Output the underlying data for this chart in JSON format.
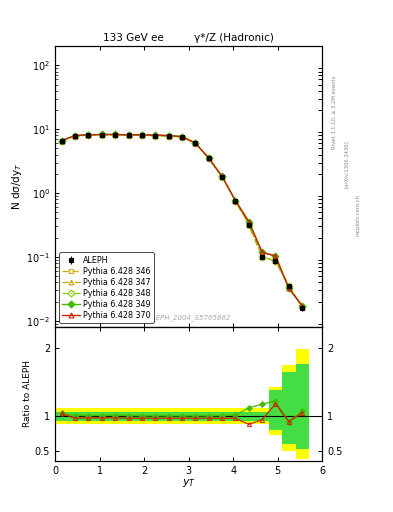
{
  "title_left": "133 GeV ee",
  "title_right": "γ*/Z (Hadronic)",
  "xlabel": "$y_T$",
  "ylabel_main": "N dσ/dy$_T$",
  "ylabel_ratio": "Ratio to ALEPH",
  "watermark": "ALEPH_2004_S5765862",
  "rivet_text": "Rivet 3.1.10, ≥ 3.2M events",
  "arxiv_text": "[arXiv:1306.3436]",
  "mcplots_text": "mcplots.cern.ch",
  "aleph_x": [
    0.15,
    0.45,
    0.75,
    1.05,
    1.35,
    1.65,
    1.95,
    2.25,
    2.55,
    2.85,
    3.15,
    3.45,
    3.75,
    4.05,
    4.35,
    4.65,
    4.95,
    5.25,
    5.55
  ],
  "aleph_y": [
    6.5,
    7.8,
    8.0,
    8.1,
    8.1,
    8.0,
    8.0,
    7.9,
    7.8,
    7.5,
    6.0,
    3.5,
    1.8,
    0.75,
    0.32,
    0.1,
    0.085,
    0.035,
    0.016
  ],
  "aleph_yerr": [
    0.25,
    0.25,
    0.25,
    0.25,
    0.25,
    0.25,
    0.25,
    0.25,
    0.25,
    0.25,
    0.2,
    0.15,
    0.08,
    0.04,
    0.02,
    0.008,
    0.007,
    0.003,
    0.002
  ],
  "mc346_y": [
    6.45,
    7.85,
    8.05,
    8.15,
    8.15,
    8.05,
    8.05,
    7.95,
    7.85,
    7.55,
    6.05,
    3.52,
    1.81,
    0.755,
    0.322,
    0.101,
    0.086,
    0.0355,
    0.0162
  ],
  "mc347_y": [
    6.45,
    7.85,
    8.05,
    8.15,
    8.15,
    8.05,
    8.05,
    7.95,
    7.85,
    7.55,
    6.05,
    3.52,
    1.81,
    0.755,
    0.322,
    0.101,
    0.086,
    0.0355,
    0.0162
  ],
  "mc348_y": [
    6.45,
    7.85,
    8.05,
    8.15,
    8.15,
    8.05,
    8.05,
    7.95,
    7.85,
    7.55,
    6.05,
    3.52,
    1.81,
    0.755,
    0.322,
    0.101,
    0.086,
    0.0355,
    0.0162
  ],
  "mc349_y": [
    6.63,
    7.96,
    8.16,
    8.26,
    8.26,
    8.16,
    8.16,
    8.06,
    7.96,
    7.66,
    6.06,
    3.535,
    1.818,
    0.765,
    0.3584,
    0.118,
    0.1037,
    0.0322,
    0.01728
  ],
  "mc370_y": [
    6.63,
    7.96,
    8.16,
    8.26,
    8.26,
    8.16,
    8.16,
    8.06,
    7.96,
    7.66,
    6.06,
    3.535,
    1.818,
    0.765,
    0.3584,
    0.118,
    0.1037,
    0.0322,
    0.01728
  ],
  "ratio_mc_x": [
    0.15,
    0.45,
    0.75,
    1.05,
    1.35,
    1.65,
    1.95,
    2.25,
    2.55,
    2.85,
    3.15,
    3.45,
    3.75,
    4.05,
    4.35,
    4.65,
    4.95,
    5.25,
    5.55
  ],
  "ratio_370": [
    1.04,
    0.97,
    0.975,
    0.975,
    0.975,
    0.97,
    0.97,
    0.97,
    0.97,
    0.97,
    0.97,
    0.97,
    0.97,
    0.97,
    0.88,
    0.95,
    1.18,
    0.92,
    1.05
  ],
  "ratio_349": [
    1.04,
    1.01,
    1.01,
    1.01,
    1.01,
    1.01,
    1.005,
    1.005,
    1.005,
    1.005,
    1.005,
    1.005,
    1.01,
    1.02,
    1.12,
    1.18,
    1.22,
    0.92,
    1.08
  ],
  "band_x_edges": [
    0.0,
    0.3,
    0.6,
    0.9,
    1.2,
    1.5,
    1.8,
    2.1,
    2.4,
    2.7,
    3.0,
    3.3,
    3.6,
    3.9,
    4.2,
    4.5,
    4.8,
    5.1,
    5.4,
    5.7
  ],
  "band_yellow_lo": [
    0.885,
    0.885,
    0.885,
    0.885,
    0.885,
    0.885,
    0.885,
    0.885,
    0.885,
    0.885,
    0.885,
    0.885,
    0.885,
    0.885,
    0.885,
    0.885,
    0.72,
    0.5,
    0.38
  ],
  "band_yellow_hi": [
    1.115,
    1.115,
    1.115,
    1.115,
    1.115,
    1.115,
    1.115,
    1.115,
    1.115,
    1.115,
    1.115,
    1.115,
    1.115,
    1.115,
    1.115,
    1.115,
    1.42,
    1.75,
    1.98
  ],
  "band_green_lo": [
    0.935,
    0.935,
    0.935,
    0.935,
    0.935,
    0.935,
    0.935,
    0.935,
    0.935,
    0.935,
    0.935,
    0.935,
    0.935,
    0.935,
    0.935,
    0.935,
    0.8,
    0.6,
    0.52
  ],
  "band_green_hi": [
    1.065,
    1.065,
    1.065,
    1.065,
    1.065,
    1.065,
    1.065,
    1.065,
    1.065,
    1.065,
    1.065,
    1.065,
    1.065,
    1.065,
    1.065,
    1.065,
    1.38,
    1.65,
    1.76
  ],
  "xlim": [
    0,
    6
  ],
  "ylim_main": [
    0.008,
    200
  ],
  "ylim_ratio": [
    0.35,
    2.3
  ],
  "legend_labels": [
    "ALEPH",
    "Pythia 6.428 346",
    "Pythia 6.428 347",
    "Pythia 6.428 348",
    "Pythia 6.428 349",
    "Pythia 6.428 370"
  ]
}
